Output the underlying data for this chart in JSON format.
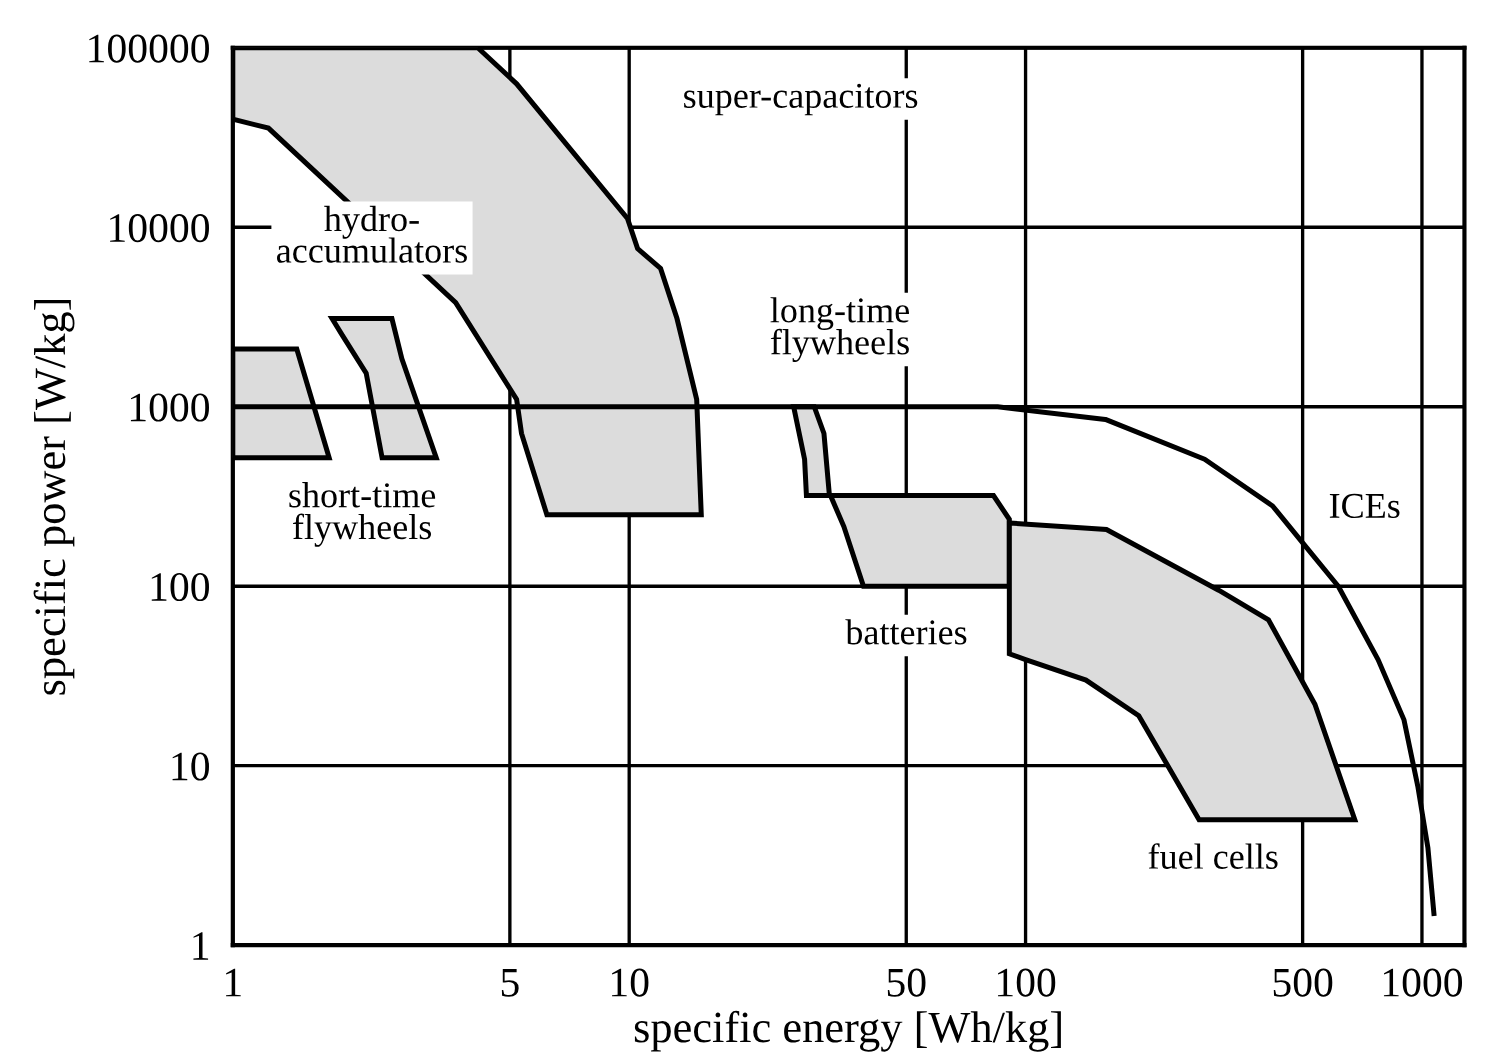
{
  "chart_data": {
    "type": "area",
    "xlabel": "specific energy [Wh/kg]",
    "ylabel": "specific power [W/kg]",
    "log": "xy",
    "grid": true,
    "xlim": [
      1,
      1280
    ],
    "xticks": [
      1,
      5,
      10,
      50,
      100,
      500,
      1000
    ],
    "ylim": [
      1,
      100000
    ],
    "yticks": [
      1,
      10,
      100,
      1000,
      10000,
      100000
    ],
    "series": [
      {
        "color": "#dcdcdc",
        "x": [
          1,
          4.15,
          5.2,
          9.9,
          10.5,
          12,
          13.2,
          14.8,
          15.2,
          6.2,
          5.35,
          5.2,
          3.65,
          1.23,
          1
        ],
        "values": [
          100000,
          100000,
          63000,
          11200,
          7600,
          5900,
          3100,
          1100,
          250,
          250,
          710,
          1100,
          3800,
          35700,
          40000
        ]
      },
      {
        "color": "#dcdcdc",
        "x": [
          1,
          1.45,
          1.75,
          1
        ],
        "values": [
          2100,
          2100,
          520,
          520
        ]
      },
      {
        "color": "#dcdcdc",
        "x": [
          1.78,
          2.52,
          2.67,
          3.26,
          2.38,
          2.17,
          1.89
        ],
        "values": [
          3100,
          3100,
          1850,
          520,
          520,
          1540,
          2500
        ]
      },
      {
        "color": "#dcdcdc",
        "x": [
          26,
          29.3,
          31,
          32,
          28,
          27.7,
          26.4
        ],
        "values": [
          1000,
          1000,
          710,
          320,
          320,
          510,
          850
        ]
      },
      {
        "color": "#dcdcdc",
        "x": [
          32.2,
          83,
          91,
          91,
          39,
          34.8
        ],
        "values": [
          320,
          320,
          236,
          100,
          100,
          215
        ]
      },
      {
        "color": "#dcdcdc",
        "x": [
          91,
          160,
          307,
          410,
          537,
          677,
          274,
          193,
          142,
          100,
          91
        ],
        "values": [
          225,
          207,
          95,
          65,
          22,
          5,
          5,
          19,
          30,
          39,
          42
        ]
      },
      {
        "type": "line",
        "color": "#000000",
        "x": [
          1,
          85,
          159,
          283,
          420,
          505,
          615,
          775,
          901,
          977,
          1035,
          1072
        ],
        "values": [
          1000,
          1000,
          850,
          510,
          280,
          170,
          100,
          39,
          18,
          7.6,
          3.5,
          1.5
        ]
      }
    ],
    "annotations": [
      "super-capacitors",
      "hydro-\naccumulators",
      "long-time\nflywheels",
      "short-time\nflywheels",
      "batteries",
      "ICEs",
      "fuel cells"
    ]
  }
}
